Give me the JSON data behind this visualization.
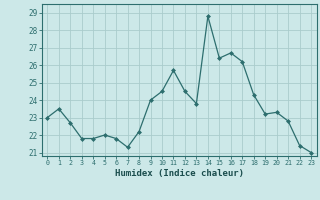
{
  "x": [
    0,
    1,
    2,
    3,
    4,
    5,
    6,
    7,
    8,
    9,
    10,
    11,
    12,
    13,
    14,
    15,
    16,
    17,
    18,
    19,
    20,
    21,
    22,
    23
  ],
  "y": [
    23.0,
    23.5,
    22.7,
    21.8,
    21.8,
    22.0,
    21.8,
    21.3,
    22.2,
    24.0,
    24.5,
    25.7,
    24.5,
    23.8,
    28.8,
    26.4,
    26.7,
    26.2,
    24.3,
    23.2,
    23.3,
    22.8,
    21.4,
    21.0
  ],
  "line_color": "#2d6e6e",
  "marker": "D",
  "marker_size": 2.0,
  "bg_color": "#cce8e8",
  "grid_color": "#aacccc",
  "xlabel": "Humidex (Indice chaleur)",
  "xlim": [
    -0.5,
    23.5
  ],
  "ylim": [
    20.8,
    29.5
  ],
  "yticks": [
    21,
    22,
    23,
    24,
    25,
    26,
    27,
    28,
    29
  ],
  "xticks": [
    0,
    1,
    2,
    3,
    4,
    5,
    6,
    7,
    8,
    9,
    10,
    11,
    12,
    13,
    14,
    15,
    16,
    17,
    18,
    19,
    20,
    21,
    22,
    23
  ],
  "axis_color": "#2d6e6e",
  "font_color": "#1a4d4d"
}
